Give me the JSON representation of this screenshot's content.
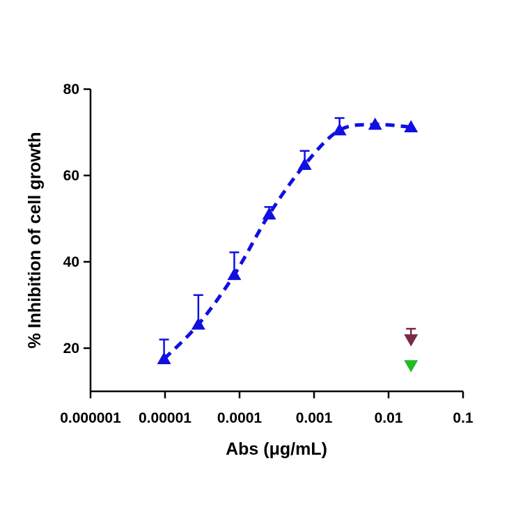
{
  "chart_data": {
    "type": "scatter",
    "xlabel": "Abs (μg/mL)",
    "ylabel": "% Inhibition of cell growth",
    "xscale": "log",
    "xlim": [
      1e-06,
      0.1
    ],
    "ylim": [
      10,
      80
    ],
    "xticks": [
      1e-06,
      1e-05,
      0.0001,
      0.001,
      0.01,
      0.1
    ],
    "xtick_labels": [
      "0.000001",
      "0.00001",
      "0.0001",
      "0.001",
      "0.01",
      "0.1"
    ],
    "yticks": [
      20,
      40,
      60,
      80
    ],
    "ytick_labels": [
      "20",
      "40",
      "60",
      "80"
    ],
    "grid": false,
    "series": [
      {
        "marker": "triangle-up",
        "color": "#1010e0",
        "fit": "dashed-sigmoid",
        "points": [
          {
            "x": 9.7e-06,
            "y": 17.5,
            "err": 4.5
          },
          {
            "x": 2.8e-05,
            "y": 25.5,
            "err": 6.8
          },
          {
            "x": 8.5e-05,
            "y": 37.0,
            "err": 5.2
          },
          {
            "x": 0.00025,
            "y": 51.0,
            "err": 1.7
          },
          {
            "x": 0.00075,
            "y": 62.5,
            "err": 3.2
          },
          {
            "x": 0.0022,
            "y": 70.5,
            "err": 2.8
          },
          {
            "x": 0.0066,
            "y": 71.8,
            "err": 0.0
          },
          {
            "x": 0.02,
            "y": 71.2,
            "err": 0.0
          }
        ]
      },
      {
        "marker": "triangle-down",
        "color": "#7a2a4a",
        "points": [
          {
            "x": 0.02,
            "y": 22.0,
            "err": 2.5
          }
        ]
      },
      {
        "marker": "triangle-down",
        "color": "#22bb22",
        "points": [
          {
            "x": 0.02,
            "y": 16.0,
            "err": 0
          }
        ]
      }
    ]
  }
}
